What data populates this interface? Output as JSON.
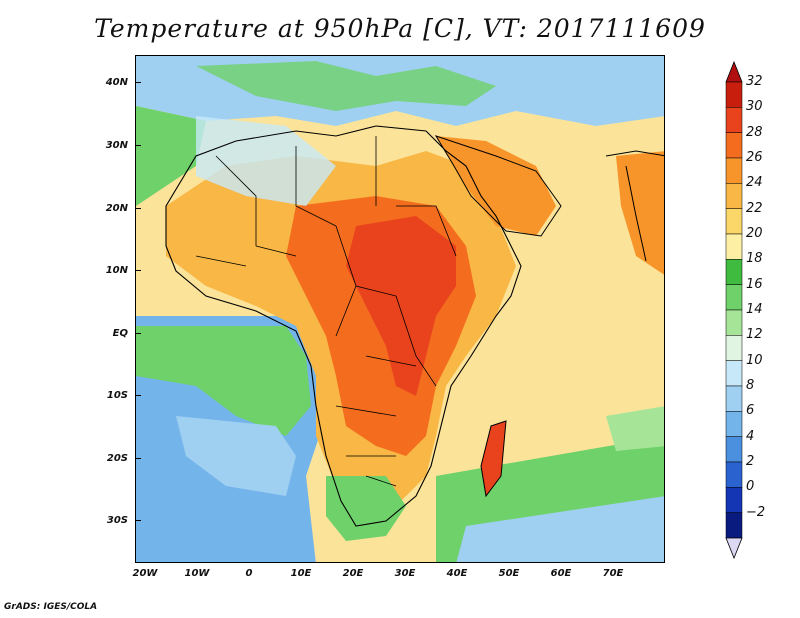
{
  "title": "Temperature at 950hPa [C], VT: 2017111609",
  "footer": "GrADS: IGES/COLA",
  "latitude_labels": [
    "40N",
    "30N",
    "20N",
    "10N",
    "EQ",
    "10S",
    "20S",
    "30S"
  ],
  "longitude_labels": [
    "20W",
    "10W",
    "0",
    "10E",
    "20E",
    "30E",
    "40E",
    "50E",
    "60E",
    "70E"
  ],
  "colorbar": {
    "labels": [
      "32",
      "30",
      "28",
      "26",
      "24",
      "22",
      "20",
      "18",
      "16",
      "14",
      "12",
      "10",
      "8",
      "6",
      "4",
      "2",
      "0",
      "−2"
    ],
    "colors": [
      "#c81e0e",
      "#e8431c",
      "#f46d1f",
      "#f7952a",
      "#f9b745",
      "#fbd76a",
      "#fdf0a5",
      "#3fbc3f",
      "#6fd16a",
      "#a6e598",
      "#e0f6e2",
      "#c7e8f8",
      "#9fd0f2",
      "#73b4ea",
      "#4a90de",
      "#2a63cf",
      "#1436b4",
      "#0a1b80"
    ],
    "top_arrow_color": "#b01010",
    "bottom_arrow_color": "#dcd8f4"
  },
  "colors": {
    "ocean_cool": "#73b4ea",
    "ocean_mild": "#9fd0f2",
    "coastal_green": "#6fd16a",
    "savanna": "#fbd76a",
    "hot": "#f46d1f",
    "very_hot": "#e8431c",
    "boundaries": "#000000"
  }
}
